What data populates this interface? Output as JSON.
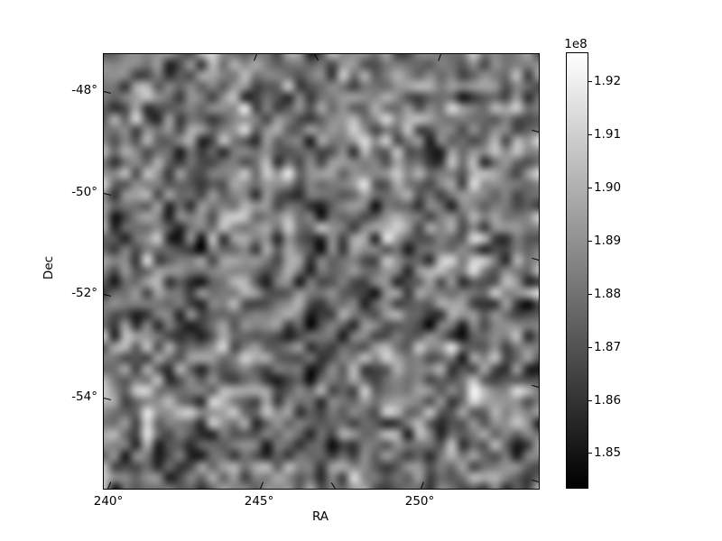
{
  "figure": {
    "background_color": "#ffffff",
    "frame_color": "#000000",
    "title": ""
  },
  "chart_data": {
    "type": "heatmap",
    "title": "",
    "xlabel": "RA",
    "ylabel": "Dec",
    "x_tick_labels": [
      "240°",
      "245°",
      "250°"
    ],
    "y_tick_labels": [
      "-48°",
      "-50°",
      "-52°",
      "-54°"
    ],
    "x_axis_range_deg": [
      239.9,
      254.1
    ],
    "y_axis_range_deg": [
      -55.8,
      -47.3
    ],
    "projection": "sky WCS (slanted ticks, nonlinear RA spacing)",
    "grid_lines": false,
    "colormap": "gray",
    "colorbar": {
      "orientation": "vertical",
      "position": "right",
      "offset_label": "1e8",
      "tick_labels": [
        "1.92",
        "1.91",
        "1.90",
        "1.89",
        "1.88",
        "1.87",
        "1.86",
        "1.85"
      ],
      "vmin": 184350000,
      "vmax": 192550000,
      "top_color": "#ffffff",
      "bottom_color": "#000000"
    },
    "values_description": "smooth bilinear-interpolated pseudo-random noise field spanning full colormap range, mean gray ~0.47",
    "grid": {
      "rows": 41,
      "cols": 41,
      "seed": 42,
      "interpolation": "bilinear",
      "distribution": "triangular",
      "center": 0.47,
      "spread": 0.42,
      "row_bias": 0.18,
      "col_bias": 0.18
    }
  }
}
